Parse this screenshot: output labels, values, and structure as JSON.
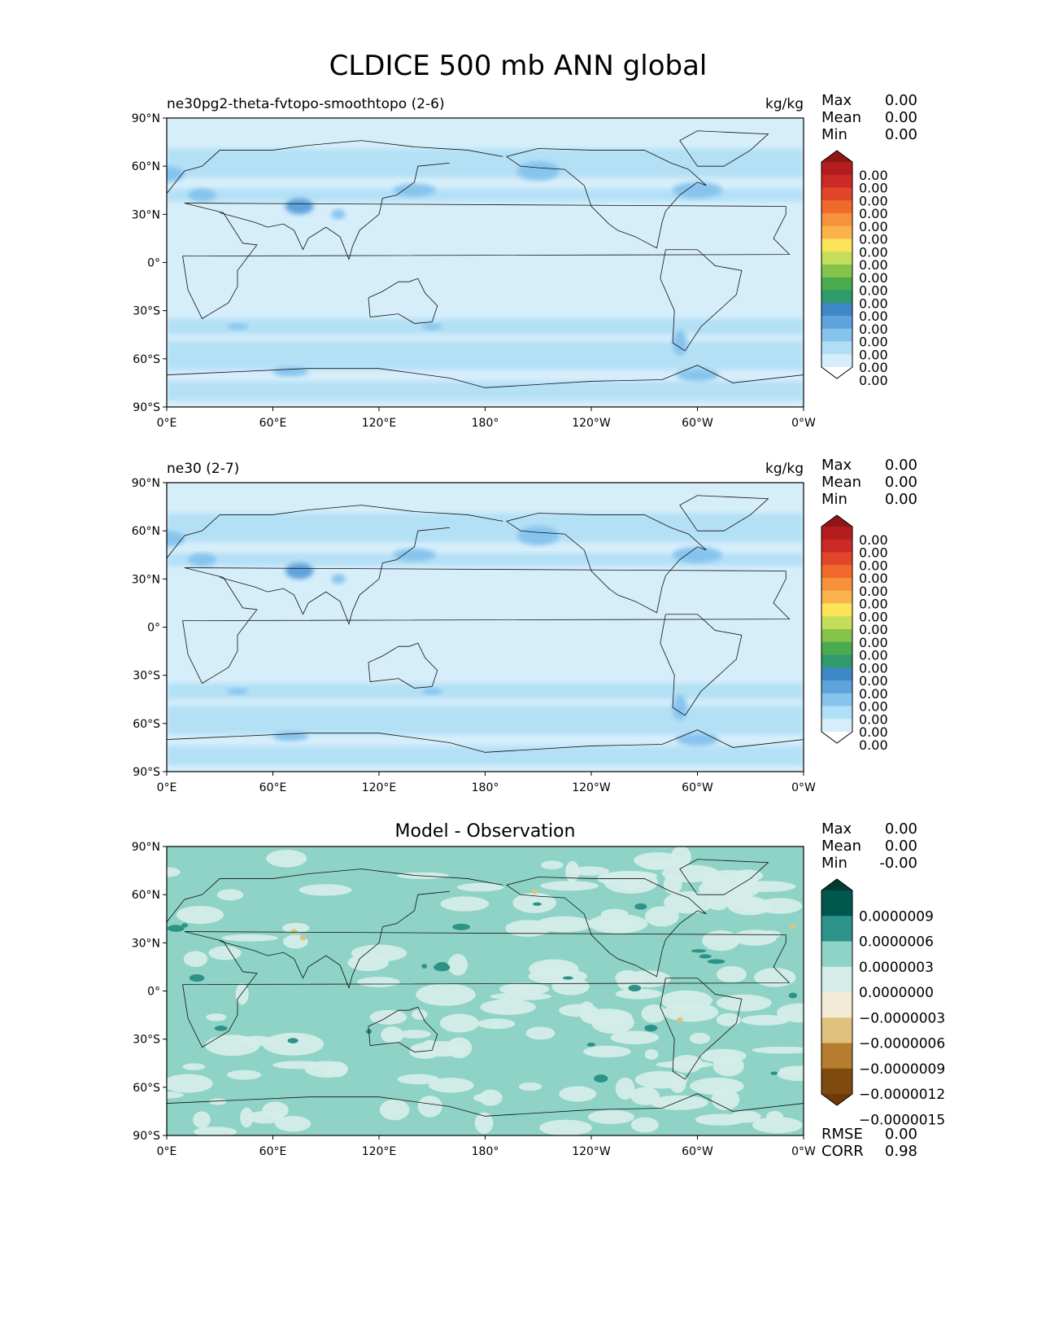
{
  "title": "CLDICE 500 mb ANN global",
  "lat_ticks": [
    "90°N",
    "60°N",
    "30°N",
    "0°",
    "30°S",
    "60°S",
    "90°S"
  ],
  "lon_ticks": [
    "0°E",
    "60°E",
    "120°E",
    "180°",
    "120°W",
    "60°W",
    "0°W"
  ],
  "stat_labels": {
    "max": "Max",
    "mean": "Mean",
    "min": "Min",
    "rmse": "RMSE",
    "corr": "CORR"
  },
  "colors": {
    "ocean_base": "#d6eefa",
    "land_line": "#111111",
    "diff_base": "#8ed3c6"
  },
  "chart_data": [
    {
      "type": "heatmap",
      "title": "ne30pg2-theta-fvtopo-smoothtopo (2-6)",
      "units": "kg/kg",
      "xrange": [
        0,
        360
      ],
      "yrange": [
        -90,
        90
      ],
      "stats": {
        "max": "0.00",
        "mean": "0.00",
        "min": "0.00"
      },
      "colorbar": {
        "extend": "both",
        "labels": [
          "0.00",
          "0.00",
          "0.00",
          "0.00",
          "0.00",
          "0.00",
          "0.00",
          "0.00",
          "0.00",
          "0.00",
          "0.00",
          "0.00",
          "0.00",
          "0.00",
          "0.00",
          "0.00",
          "0.00"
        ],
        "colors": [
          "#ffffff",
          "#d6eefa",
          "#b1dff6",
          "#86c4ee",
          "#5fa3dc",
          "#3f88c8",
          "#2f9a6a",
          "#4aab4e",
          "#86c34b",
          "#c4dd5a",
          "#fbe45a",
          "#fbb44b",
          "#f7923c",
          "#ef6a2c",
          "#e0472a",
          "#cb2a27",
          "#b21d1f",
          "#8e1614"
        ]
      }
    },
    {
      "type": "heatmap",
      "title": "ne30 (2-7)",
      "units": "kg/kg",
      "xrange": [
        0,
        360
      ],
      "yrange": [
        -90,
        90
      ],
      "stats": {
        "max": "0.00",
        "mean": "0.00",
        "min": "0.00"
      },
      "colorbar": {
        "extend": "both",
        "labels": [
          "0.00",
          "0.00",
          "0.00",
          "0.00",
          "0.00",
          "0.00",
          "0.00",
          "0.00",
          "0.00",
          "0.00",
          "0.00",
          "0.00",
          "0.00",
          "0.00",
          "0.00",
          "0.00",
          "0.00"
        ],
        "colors": [
          "#ffffff",
          "#d6eefa",
          "#b1dff6",
          "#86c4ee",
          "#5fa3dc",
          "#3f88c8",
          "#2f9a6a",
          "#4aab4e",
          "#86c34b",
          "#c4dd5a",
          "#fbe45a",
          "#fbb44b",
          "#f7923c",
          "#ef6a2c",
          "#e0472a",
          "#cb2a27",
          "#b21d1f",
          "#8e1614"
        ]
      }
    },
    {
      "type": "heatmap",
      "title": "Model - Observation",
      "units": "",
      "xrange": [
        0,
        360
      ],
      "yrange": [
        -90,
        90
      ],
      "stats": {
        "max": "0.00",
        "mean": "0.00",
        "min": "-0.00"
      },
      "rmse": "0.00",
      "corr": "0.98",
      "colorbar": {
        "extend": "both",
        "labels": [
          "0.0000009",
          "0.0000006",
          "0.0000003",
          "0.0000000",
          "−0.0000003",
          "−0.0000006",
          "−0.0000009",
          "−0.0000012",
          "−0.0000015"
        ],
        "colors": [
          "#6e3b08",
          "#7e4a0e",
          "#b67c2f",
          "#dfc27d",
          "#f3ebd5",
          "#d5ede8",
          "#8ed3c6",
          "#2d9289",
          "#00574e",
          "#003c30"
        ]
      }
    }
  ]
}
